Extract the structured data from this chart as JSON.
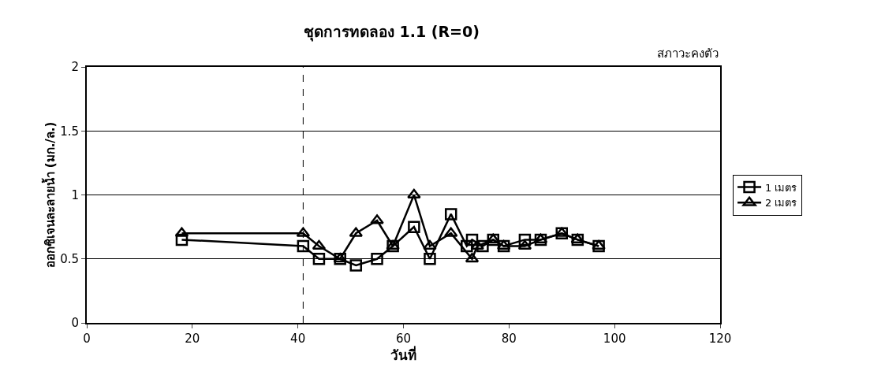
{
  "chart_data": {
    "type": "line",
    "title": "ชุดการทดลอง 1.1 (R=0)",
    "xlabel": "วันที่",
    "ylabel": "ออกซิเจนละลายน้ำ (มก./ล.)",
    "annotations": [
      "สภาวะคงตัว"
    ],
    "xlim": [
      0,
      120
    ],
    "xticks": [
      0,
      20,
      40,
      60,
      80,
      100,
      120
    ],
    "ylim": [
      0,
      2
    ],
    "yticks": [
      0,
      0.5,
      1,
      1.5,
      2
    ],
    "grid": "y",
    "legend": "right",
    "ref_lines": [
      {
        "axis": "x",
        "value": 41,
        "color": "#000000",
        "line_style": "dashed"
      }
    ],
    "series": [
      {
        "name": "1 เมตร",
        "color": "#000000",
        "marker": "square",
        "x": [
          18,
          41,
          44,
          48,
          51,
          55,
          58,
          62,
          65,
          69,
          72,
          73,
          75,
          77,
          79,
          83,
          86,
          90,
          93,
          97
        ],
        "values": [
          0.65,
          0.6,
          0.5,
          0.5,
          0.45,
          0.5,
          0.6,
          0.75,
          0.5,
          0.85,
          0.6,
          0.65,
          0.6,
          0.65,
          0.6,
          0.65,
          0.65,
          0.7,
          0.65,
          0.6
        ]
      },
      {
        "name": "2 เมตร",
        "color": "#000000",
        "marker": "triangle",
        "x": [
          18,
          41,
          44,
          48,
          51,
          55,
          58,
          62,
          65,
          69,
          73,
          74,
          77,
          79,
          83,
          86,
          90,
          93,
          97
        ],
        "values": [
          0.7,
          0.7,
          0.6,
          0.5,
          0.7,
          0.8,
          0.6,
          1.0,
          0.6,
          0.7,
          0.5,
          0.6,
          0.65,
          0.6,
          0.6,
          0.65,
          0.7,
          0.65,
          0.6
        ]
      }
    ]
  }
}
